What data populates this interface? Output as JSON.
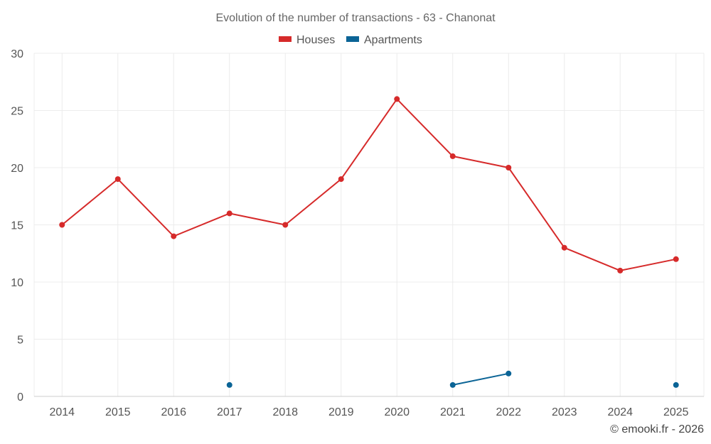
{
  "chart_data": {
    "type": "line",
    "title": "Evolution of the number of transactions - 63 - Chanonat",
    "categories": [
      "2014",
      "2015",
      "2016",
      "2017",
      "2018",
      "2019",
      "2020",
      "2021",
      "2022",
      "2023",
      "2024",
      "2025"
    ],
    "series": [
      {
        "name": "Houses",
        "color": "#d62a2a",
        "values": [
          15,
          19,
          14,
          16,
          15,
          19,
          26,
          21,
          20,
          13,
          11,
          12
        ]
      },
      {
        "name": "Apartments",
        "color": "#0b6496",
        "values": [
          null,
          null,
          null,
          1,
          null,
          null,
          null,
          1,
          2,
          null,
          null,
          1
        ]
      }
    ],
    "ylim": [
      0,
      30
    ],
    "yticks": [
      0,
      5,
      10,
      15,
      20,
      25,
      30
    ],
    "xlabel": "",
    "ylabel": "",
    "grid": true,
    "legend_position": "top-center"
  },
  "credit": "© emooki.fr - 2026"
}
